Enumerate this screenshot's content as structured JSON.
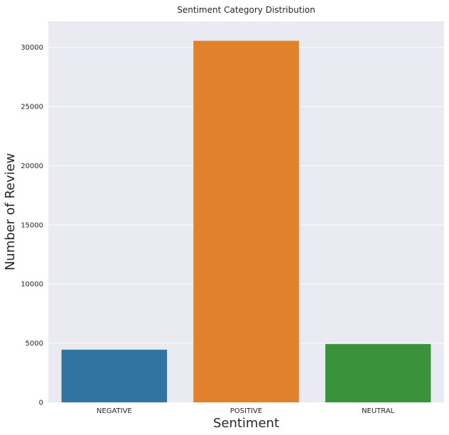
{
  "chart_data": {
    "type": "bar",
    "title": "Sentiment Category Distribution",
    "xlabel": "Sentiment",
    "ylabel": "Number of Review",
    "categories": [
      "NEGATIVE",
      "POSITIVE",
      "NEUTRAL"
    ],
    "values": [
      4450,
      30550,
      4930
    ],
    "colors": [
      "#3274a1",
      "#e1812c",
      "#3a923a"
    ],
    "ylim": [
      0,
      32200
    ],
    "yticks": [
      0,
      5000,
      10000,
      15000,
      20000,
      25000,
      30000
    ],
    "grid": true,
    "background": "#eaeaf2"
  }
}
